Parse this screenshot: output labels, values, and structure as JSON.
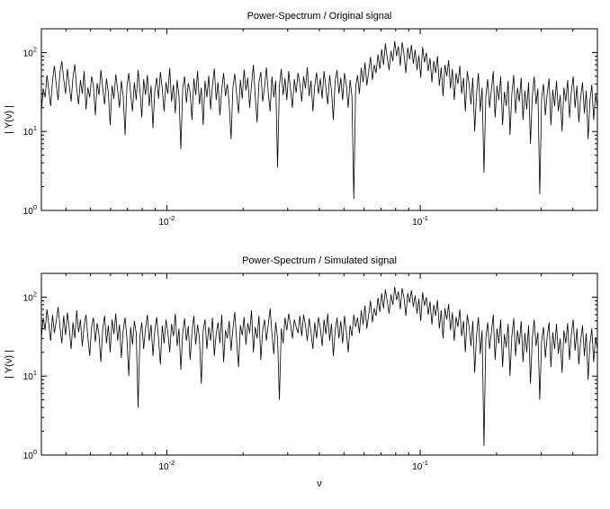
{
  "figure": {
    "background": "#ffffff"
  },
  "chart_data": [
    {
      "type": "line",
      "title": "Power-Spectrum / Original signal",
      "xlabel": "",
      "ylabel": "| Y(ν) |",
      "xscale": "log",
      "yscale": "log",
      "xlim": [
        0.0032,
        0.5
      ],
      "ylim": [
        1,
        200
      ],
      "xticks": [
        0.01,
        0.1
      ],
      "xtick_labels": [
        "10^-2",
        "10^-1"
      ],
      "yticks": [
        1,
        10,
        100
      ],
      "ytick_labels": [
        "10^0",
        "10^1",
        "10^2"
      ],
      "line_color": "#000000",
      "x_log_spaced": true,
      "values": [
        18,
        35,
        27,
        52,
        33,
        21,
        44,
        68,
        39,
        25,
        57,
        78,
        46,
        30,
        62,
        38,
        24,
        49,
        71,
        34,
        22,
        45,
        30,
        58,
        19,
        36,
        27,
        50,
        38,
        16,
        41,
        29,
        60,
        35,
        22,
        47,
        31,
        12,
        38,
        26,
        53,
        34,
        20,
        44,
        28,
        9,
        37,
        55,
        30,
        18,
        42,
        25,
        60,
        33,
        15,
        46,
        29,
        52,
        21,
        38,
        11,
        33,
        48,
        26,
        57,
        35,
        18,
        42,
        30,
        64,
        24,
        39,
        17,
        45,
        28,
        6,
        35,
        50,
        23,
        41,
        31,
        14,
        47,
        29,
        58,
        22,
        36,
        12,
        44,
        27,
        51,
        19,
        38,
        63,
        25,
        42,
        16,
        34,
        55,
        28,
        40,
        22,
        8,
        36,
        54,
        30,
        17,
        45,
        26,
        61,
        33,
        48,
        20,
        39,
        70,
        28,
        13,
        42,
        57,
        24,
        36,
        65,
        31,
        18,
        50,
        27,
        44,
        3.5,
        38,
        62,
        29,
        47,
        25,
        58,
        34,
        20,
        46,
        31,
        55,
        40,
        24,
        50,
        35,
        65,
        28,
        44,
        18,
        38,
        56,
        30,
        47,
        26,
        58,
        36,
        22,
        52,
        33,
        14,
        44,
        60,
        30,
        48,
        25,
        55,
        38,
        20,
        45,
        28,
        1.4,
        36,
        52,
        30,
        64,
        42,
        75,
        38,
        58,
        88,
        45,
        70,
        55,
        95,
        62,
        110,
        70,
        130,
        85,
        60,
        105,
        78,
        140,
        90,
        120,
        68,
        135,
        95,
        55,
        115,
        82,
        125,
        72,
        108,
        60,
        92,
        48,
        118,
        75,
        100,
        58,
        85,
        42,
        78,
        55,
        90,
        38,
        65,
        28,
        70,
        50,
        80,
        35,
        62,
        25,
        55,
        40,
        68,
        30,
        48,
        18,
        58,
        40,
        22,
        48,
        10,
        30,
        55,
        18,
        36,
        3,
        28,
        46,
        20,
        34,
        58,
        15,
        38,
        25,
        50,
        12,
        32,
        21,
        44,
        9,
        30,
        52,
        17,
        36,
        24,
        48,
        14,
        33,
        19,
        42,
        7,
        28,
        50,
        22,
        35,
        1.6,
        26,
        40,
        16,
        30,
        47,
        12,
        34,
        21,
        44,
        18,
        29,
        10,
        36,
        24,
        45,
        15,
        32,
        50,
        20,
        38,
        13,
        27,
        42,
        17,
        33,
        8,
        25,
        39,
        14,
        30,
        20
      ]
    },
    {
      "type": "line",
      "title": "Power-Spectrum / Simulated signal",
      "xlabel": "ν",
      "ylabel": "| Y(ν) |",
      "xscale": "log",
      "yscale": "log",
      "xlim": [
        0.0032,
        0.5
      ],
      "ylim": [
        1,
        200
      ],
      "xticks": [
        0.01,
        0.1
      ],
      "xtick_labels": [
        "10^-2",
        "10^-1"
      ],
      "yticks": [
        1,
        10,
        100
      ],
      "ytick_labels": [
        "10^0",
        "10^1",
        "10^2"
      ],
      "line_color": "#000000",
      "x_log_spaced": true,
      "values": [
        30,
        55,
        38,
        70,
        45,
        28,
        60,
        35,
        50,
        75,
        42,
        26,
        58,
        33,
        64,
        40,
        22,
        48,
        30,
        68,
        36,
        52,
        24,
        44,
        60,
        31,
        18,
        42,
        55,
        27,
        47,
        33,
        15,
        40,
        58,
        26,
        44,
        20,
        52,
        34,
        62,
        28,
        45,
        17,
        38,
        55,
        30,
        10,
        42,
        25,
        50,
        35,
        4,
        32,
        48,
        22,
        40,
        60,
        28,
        45,
        18,
        38,
        56,
        30,
        14,
        44,
        26,
        52,
        36,
        20,
        46,
        32,
        62,
        24,
        40,
        12,
        35,
        54,
        28,
        43,
        16,
        36,
        58,
        25,
        45,
        30,
        8,
        38,
        52,
        22,
        42,
        28,
        55,
        18,
        34,
        48,
        26,
        60,
        15,
        38,
        30,
        50,
        21,
        40,
        65,
        28,
        13,
        44,
        33,
        56,
        25,
        47,
        35,
        68,
        20,
        42,
        30,
        58,
        16,
        38,
        52,
        28,
        45,
        72,
        34,
        19,
        48,
        30,
        5,
        40,
        26,
        55,
        38,
        62,
        45,
        30,
        52,
        42,
        35,
        58,
        32,
        60,
        44,
        28,
        54,
        36,
        22,
        48,
        30,
        56,
        40,
        24,
        52,
        34,
        62,
        28,
        46,
        18,
        38,
        55,
        30,
        50,
        26,
        58,
        36,
        20,
        44,
        32,
        60,
        42,
        55,
        35,
        68,
        45,
        78,
        40,
        60,
        90,
        48,
        72,
        58,
        98,
        65,
        112,
        72,
        125,
        88,
        62,
        108,
        80,
        135,
        92,
        118,
        70,
        130,
        98,
        58,
        112,
        85,
        122,
        75,
        105,
        62,
        95,
        50,
        115,
        78,
        100,
        60,
        88,
        45,
        80,
        58,
        92,
        40,
        68,
        30,
        72,
        52,
        82,
        38,
        64,
        28,
        56,
        42,
        70,
        32,
        50,
        20,
        60,
        42,
        24,
        50,
        11,
        32,
        56,
        19,
        38,
        1.3,
        30,
        48,
        22,
        36,
        60,
        16,
        40,
        26,
        52,
        13,
        34,
        23,
        46,
        10,
        32,
        54,
        18,
        38,
        25,
        50,
        15,
        35,
        20,
        44,
        8,
        30,
        52,
        24,
        36,
        5,
        28,
        42,
        17,
        32,
        48,
        13,
        36,
        22,
        46,
        19,
        30,
        11,
        38,
        26,
        47,
        16,
        34,
        52,
        21,
        40,
        14,
        28,
        44,
        18,
        35,
        9,
        26,
        40,
        15,
        31,
        22
      ]
    }
  ]
}
